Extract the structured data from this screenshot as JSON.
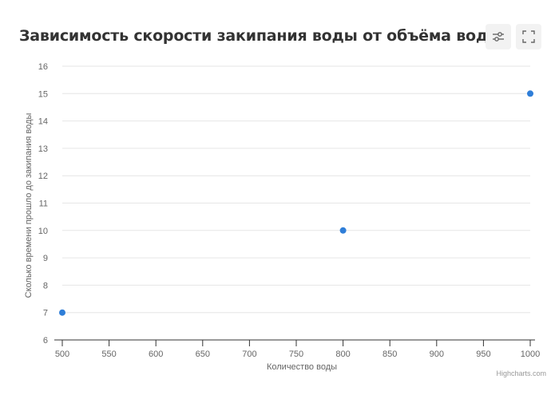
{
  "chart_data": {
    "type": "scatter",
    "title": "Зависимость скорости закипания воды от объёма воды",
    "xlabel": "Количество воды",
    "ylabel": "Сколько времени прошло до закипания воды",
    "xlim": [
      500,
      1000
    ],
    "ylim": [
      6,
      16
    ],
    "x_ticks": [
      500,
      550,
      600,
      650,
      700,
      750,
      800,
      850,
      900,
      950,
      1000
    ],
    "y_ticks": [
      6,
      7,
      8,
      9,
      10,
      11,
      12,
      13,
      14,
      15,
      16
    ],
    "grid": true,
    "points": [
      {
        "x": 500,
        "y": 7
      },
      {
        "x": 800,
        "y": 10
      },
      {
        "x": 1000,
        "y": 15
      }
    ],
    "point_color": "#2f7ed8"
  },
  "toolbar": {
    "settings_icon": "sliders-icon",
    "fullscreen_icon": "fullscreen-icon"
  },
  "credits": "Highcharts.com"
}
